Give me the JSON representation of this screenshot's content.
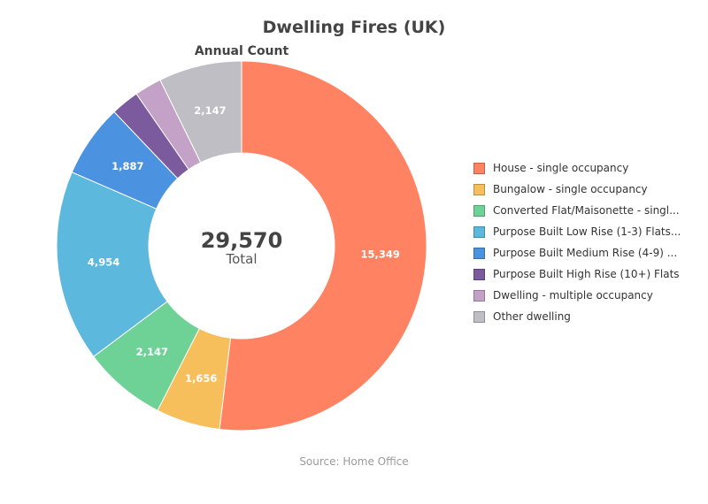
{
  "chart_data": {
    "type": "pie",
    "title": "Dwelling Fires (UK)",
    "subtitle": "Annual Count",
    "source": "Source: Home Office",
    "center": {
      "value": "29,570",
      "label": "Total"
    },
    "categories": [
      "House - single occupancy",
      "Bungalow - single occupancy",
      "Converted Flat/Maisonette - singl...",
      "Purpose Built Low Rise (1-3) Flats...",
      "Purpose Built Medium Rise (4-9) ...",
      "Purpose Built High Rise (10+) Flats",
      "Dwelling - multiple occupancy",
      "Other dwelling"
    ],
    "values": [
      15349,
      1656,
      2147,
      4954,
      1887,
      728,
      702,
      2147
    ],
    "labels": [
      "15,349",
      "1,656",
      "2,147",
      "4,954",
      "1,887",
      "",
      "",
      "2,147"
    ],
    "colors": [
      "#FF8363",
      "#F6BF5B",
      "#6ED296",
      "#5DB8DE",
      "#4B93E0",
      "#7B5A9E",
      "#C4A2C8",
      "#BEBEC4"
    ],
    "legend_position": "right"
  }
}
